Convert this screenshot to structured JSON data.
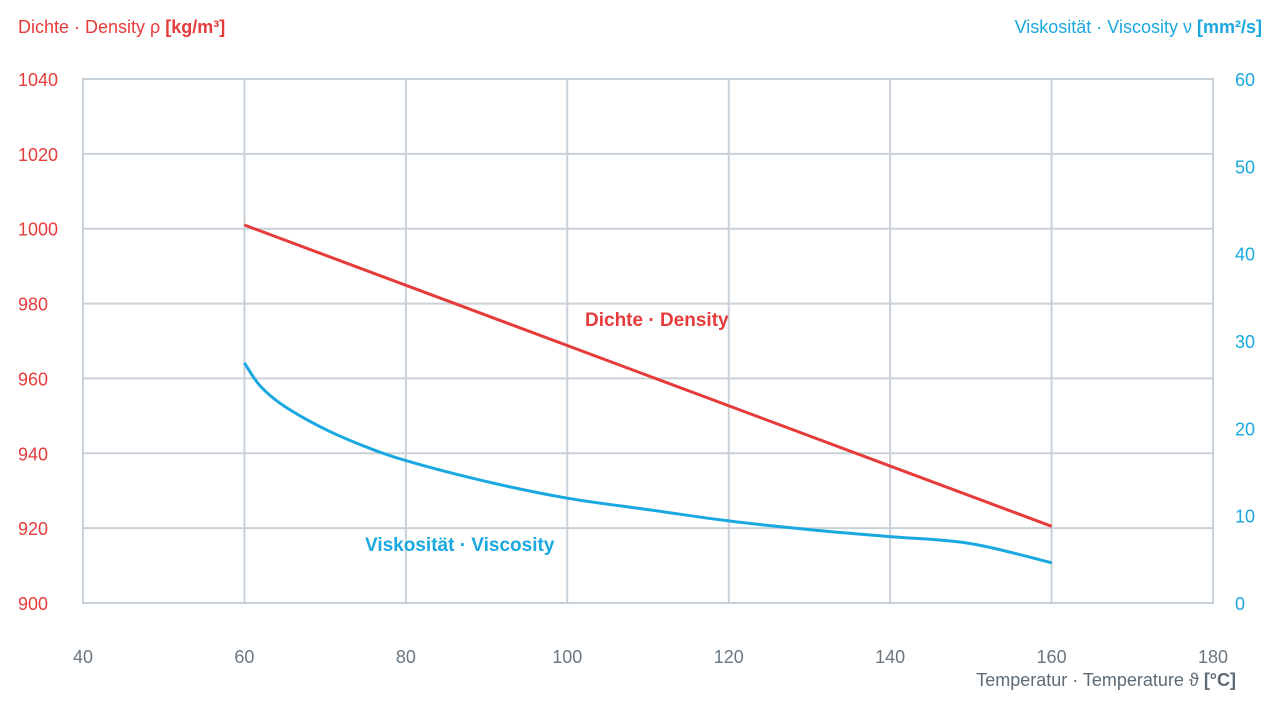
{
  "colors": {
    "density": "#e63b3b",
    "viscosity": "#1aa8e0",
    "grid": "#c9d1d8",
    "xtext": "#6b7780"
  },
  "chart_data": {
    "type": "line",
    "axes": {
      "y_left": {
        "label": "Dichte · Density ρ",
        "unit": "[kg/m³]",
        "ticks": [
          "1040",
          "1020",
          "1000",
          "980",
          "960",
          "940",
          "920",
          "900"
        ],
        "range": [
          900,
          1040
        ]
      },
      "y_right": {
        "label": "Viskosität · Viscosity ν",
        "unit": "[mm²/s]",
        "ticks": [
          "60",
          "50",
          "40",
          "30",
          "20",
          "10",
          "0"
        ],
        "range": [
          0,
          60
        ]
      },
      "x": {
        "label": "Temperatur · Temperature ϑ",
        "unit": "[°C]",
        "ticks": [
          "40",
          "60",
          "80",
          "100",
          "120",
          "140",
          "160",
          "180"
        ],
        "range": [
          40,
          180
        ]
      }
    },
    "grid": true,
    "series": [
      {
        "name": "Dichte · Density",
        "axis": "left",
        "x": [
          60,
          160
        ],
        "y": [
          1001,
          920.5
        ]
      },
      {
        "name": "Viskosität · Viscosity",
        "axis": "right",
        "x": [
          60,
          62,
          65,
          70,
          75,
          80,
          90,
          100,
          110,
          120,
          130,
          140,
          150,
          160
        ],
        "y": [
          27.5,
          24.8,
          22.5,
          19.9,
          17.9,
          16.3,
          13.9,
          12.0,
          10.7,
          9.4,
          8.4,
          7.6,
          6.8,
          4.6
        ]
      }
    ]
  }
}
